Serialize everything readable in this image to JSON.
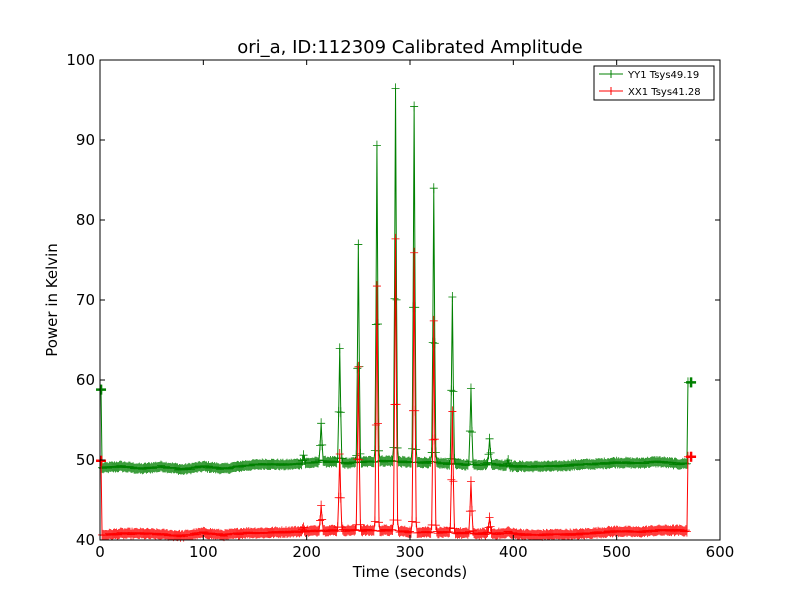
{
  "chart_data": {
    "type": "line",
    "title": "ori_a, ID:112309 Calibrated Amplitude",
    "xlabel": "Time (seconds)",
    "ylabel": "Power in Kelvin",
    "xlim": [
      0,
      600
    ],
    "ylim": [
      40,
      100
    ],
    "xticks": [
      0,
      100,
      200,
      300,
      400,
      500,
      600
    ],
    "yticks": [
      40,
      50,
      60,
      70,
      80,
      90,
      100
    ],
    "grid": false,
    "legend_position": "top-right",
    "marker": "+",
    "series": [
      {
        "name": "YY1 Tsys49.19",
        "color": "#008000",
        "baseline": [
          [
            2,
            49.0
          ],
          [
            20,
            49.2
          ],
          [
            40,
            48.9
          ],
          [
            60,
            49.2
          ],
          [
            80,
            48.8
          ],
          [
            100,
            49.2
          ],
          [
            120,
            48.9
          ],
          [
            140,
            49.3
          ],
          [
            160,
            49.5
          ],
          [
            180,
            49.4
          ],
          [
            200,
            49.6
          ],
          [
            220,
            49.8
          ],
          [
            240,
            49.6
          ],
          [
            260,
            49.8
          ],
          [
            280,
            49.9
          ],
          [
            300,
            49.7
          ],
          [
            320,
            49.7
          ],
          [
            340,
            49.5
          ],
          [
            360,
            49.4
          ],
          [
            380,
            49.5
          ],
          [
            400,
            49.2
          ],
          [
            420,
            49.2
          ],
          [
            440,
            49.2
          ],
          [
            460,
            49.4
          ],
          [
            480,
            49.5
          ],
          [
            500,
            49.7
          ],
          [
            520,
            49.6
          ],
          [
            540,
            49.8
          ],
          [
            560,
            49.5
          ],
          [
            569,
            49.6
          ]
        ],
        "spikes": [
          [
            197,
            50.6
          ],
          [
            214,
            54.7
          ],
          [
            232,
            64.0
          ],
          [
            250,
            77.0
          ],
          [
            268,
            89.3
          ],
          [
            286,
            96.5
          ],
          [
            304,
            94.2
          ],
          [
            323,
            83.9
          ],
          [
            341,
            70.4
          ],
          [
            359,
            59.0
          ],
          [
            377,
            52.6
          ],
          [
            395,
            50.0
          ]
        ],
        "edges": [
          [
            1,
            58.8
          ],
          [
            2,
            49.0
          ],
          [
            568,
            49.6
          ],
          [
            569,
            59.7
          ],
          [
            572,
            59.7
          ]
        ]
      },
      {
        "name": "XX1 Tsys41.28",
        "color": "#ff0000",
        "baseline": [
          [
            2,
            40.6
          ],
          [
            20,
            40.8
          ],
          [
            40,
            40.8
          ],
          [
            60,
            40.7
          ],
          [
            80,
            40.5
          ],
          [
            100,
            40.9
          ],
          [
            120,
            40.6
          ],
          [
            140,
            40.9
          ],
          [
            160,
            40.9
          ],
          [
            180,
            41.0
          ],
          [
            200,
            41.1
          ],
          [
            220,
            41.2
          ],
          [
            240,
            41.2
          ],
          [
            260,
            41.2
          ],
          [
            280,
            41.2
          ],
          [
            300,
            41.0
          ],
          [
            320,
            41.0
          ],
          [
            340,
            40.9
          ],
          [
            360,
            40.8
          ],
          [
            380,
            40.8
          ],
          [
            400,
            40.8
          ],
          [
            420,
            40.6
          ],
          [
            440,
            40.7
          ],
          [
            460,
            40.7
          ],
          [
            480,
            40.9
          ],
          [
            500,
            41.1
          ],
          [
            520,
            41.0
          ],
          [
            540,
            41.2
          ],
          [
            560,
            41.2
          ],
          [
            569,
            41.1
          ]
        ],
        "spikes": [
          [
            197,
            41.5
          ],
          [
            214,
            44.4
          ],
          [
            232,
            50.8
          ],
          [
            250,
            61.7
          ],
          [
            268,
            71.7
          ],
          [
            286,
            77.6
          ],
          [
            304,
            75.8
          ],
          [
            323,
            67.5
          ],
          [
            341,
            56.0
          ],
          [
            359,
            47.3
          ],
          [
            377,
            42.8
          ],
          [
            395,
            41.2
          ]
        ],
        "edges": [
          [
            1,
            49.9
          ],
          [
            2,
            40.6
          ],
          [
            568,
            41.1
          ],
          [
            569,
            50.4
          ],
          [
            572,
            50.4
          ]
        ]
      }
    ]
  }
}
